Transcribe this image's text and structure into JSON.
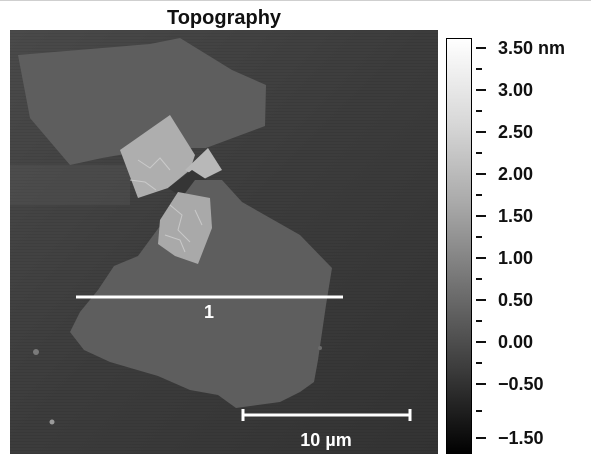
{
  "figure": {
    "title": "Topography"
  },
  "image": {
    "line_profile_label": "1",
    "scale_bar_label": "10 µm"
  },
  "colorbar": {
    "labels": [
      "3.50 nm",
      "3.00",
      "2.50",
      "2.00",
      "1.50",
      "1.00",
      "0.50",
      "0.00",
      "−0.50",
      "−1.50"
    ],
    "colormap": "gray",
    "max_color": "#ffffff",
    "min_color": "#000000"
  }
}
